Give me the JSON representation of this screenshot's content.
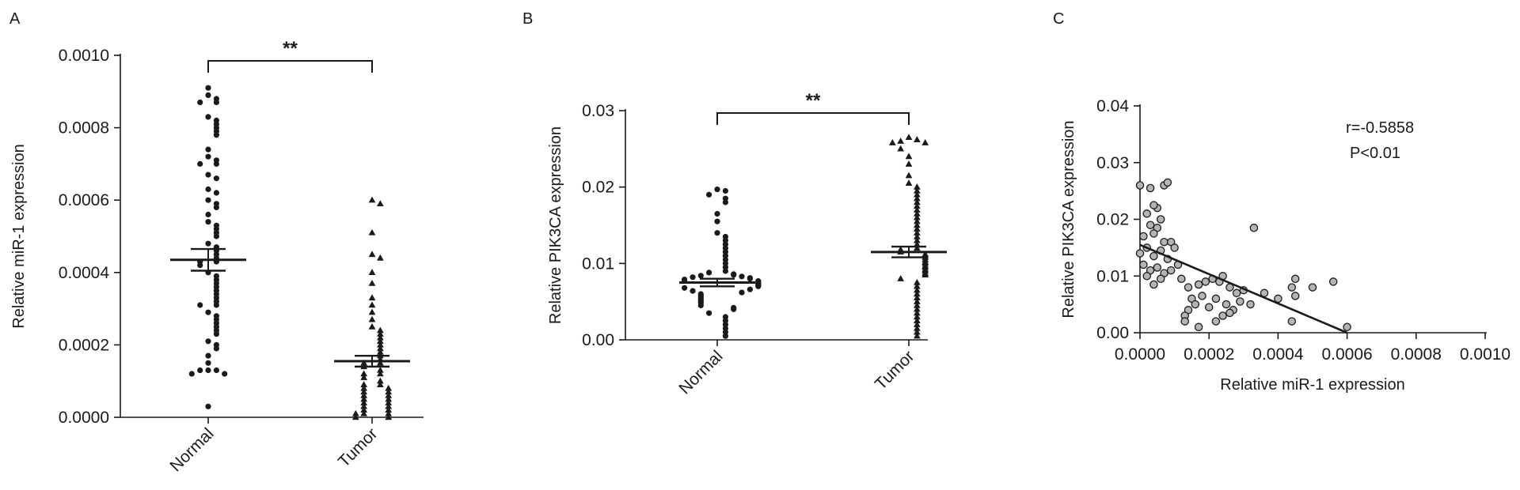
{
  "colors": {
    "ink": "#1a1a1a",
    "marker_fill_c": "#b4b4b4",
    "background": "#ffffff"
  },
  "chart_data": [
    {
      "panel": "A",
      "type": "scatter",
      "xlabel": "",
      "ylabel": "Relative miR-1 expression",
      "categories": [
        "Normal",
        "Tumor"
      ],
      "ylim": [
        0,
        0.001
      ],
      "yticks": [
        "0.0000",
        "0.0002",
        "0.0004",
        "0.0006",
        "0.0008",
        "0.0010"
      ],
      "ytick_values": [
        0,
        0.0002,
        0.0004,
        0.0006,
        0.0008,
        0.001
      ],
      "significance": "**",
      "groups": [
        {
          "category": "Normal",
          "marker": "circle",
          "mean": 0.000435,
          "sem_low": 0.000405,
          "sem_high": 0.000465,
          "values": [
            0.00091,
            0.00089,
            0.00088,
            0.00087,
            0.00087,
            0.00083,
            0.00082,
            0.00081,
            0.0008,
            0.00079,
            0.00078,
            0.00074,
            0.00072,
            0.00071,
            0.0007,
            0.0007,
            0.00067,
            0.00066,
            0.00063,
            0.00062,
            0.0006,
            0.00059,
            0.00058,
            0.00056,
            0.00054,
            0.00053,
            0.00052,
            0.00051,
            0.0005,
            0.00048,
            0.00047,
            0.00046,
            0.00045,
            0.00044,
            0.00043,
            0.00043,
            0.00042,
            0.0004,
            0.00039,
            0.00038,
            0.00037,
            0.00036,
            0.00035,
            0.00034,
            0.00033,
            0.00032,
            0.00031,
            0.00031,
            0.00029,
            0.00028,
            0.00027,
            0.00026,
            0.00025,
            0.00024,
            0.00023,
            0.00021,
            0.0002,
            0.00019,
            0.00017,
            0.00015,
            0.00013,
            0.00013,
            0.00013,
            0.00012,
            0.00012,
            3e-05
          ]
        },
        {
          "category": "Tumor",
          "marker": "triangle",
          "mean": 0.000155,
          "sem_low": 0.00014,
          "sem_high": 0.00017,
          "values": [
            0.0006,
            0.00059,
            0.00051,
            0.00045,
            0.00044,
            0.0004,
            0.00037,
            0.00033,
            0.00031,
            0.00029,
            0.00027,
            0.00025,
            0.00024,
            0.00023,
            0.00022,
            0.00021,
            0.0002,
            0.00019,
            0.00018,
            0.00017,
            0.00016,
            0.00015,
            0.00015,
            0.00014,
            0.00013,
            0.00012,
            0.00012,
            0.00011,
            0.0001,
            9e-05,
            9e-05,
            8e-05,
            8e-05,
            7e-05,
            7e-05,
            6e-05,
            6e-05,
            5e-05,
            5e-05,
            4e-05,
            4e-05,
            3e-05,
            3e-05,
            2e-05,
            2e-05,
            1e-05,
            1e-05,
            1e-05,
            0.0,
            0.0
          ]
        }
      ]
    },
    {
      "panel": "B",
      "type": "scatter",
      "xlabel": "",
      "ylabel": "Relative PIK3CA expression",
      "categories": [
        "Normal",
        "Tumor"
      ],
      "ylim": [
        0,
        0.03
      ],
      "yticks": [
        "0.00",
        "0.01",
        "0.02",
        "0.03"
      ],
      "ytick_values": [
        0,
        0.01,
        0.02,
        0.03
      ],
      "significance": "**",
      "groups": [
        {
          "category": "Normal",
          "marker": "circle",
          "mean": 0.0075,
          "sem_low": 0.007,
          "sem_high": 0.008,
          "values": [
            0.0197,
            0.0195,
            0.019,
            0.0185,
            0.018,
            0.0165,
            0.0155,
            0.014,
            0.0135,
            0.013,
            0.0125,
            0.012,
            0.0115,
            0.011,
            0.0105,
            0.01,
            0.0095,
            0.009,
            0.0088,
            0.0086,
            0.0085,
            0.0084,
            0.0083,
            0.0082,
            0.0081,
            0.008,
            0.0079,
            0.0078,
            0.0077,
            0.0076,
            0.0075,
            0.0074,
            0.0073,
            0.0072,
            0.0071,
            0.007,
            0.0068,
            0.0066,
            0.0064,
            0.0062,
            0.006,
            0.0058,
            0.0056,
            0.0054,
            0.0052,
            0.005,
            0.0048,
            0.0045,
            0.0042,
            0.004,
            0.0035,
            0.003,
            0.0025,
            0.002,
            0.0015,
            0.001,
            0.0005
          ]
        },
        {
          "category": "Tumor",
          "marker": "triangle",
          "mean": 0.0115,
          "sem_low": 0.0108,
          "sem_high": 0.0122,
          "values": [
            0.0265,
            0.0262,
            0.026,
            0.0258,
            0.0258,
            0.025,
            0.024,
            0.023,
            0.0215,
            0.0205,
            0.02,
            0.0195,
            0.019,
            0.0185,
            0.018,
            0.0175,
            0.017,
            0.0165,
            0.016,
            0.0155,
            0.015,
            0.0145,
            0.014,
            0.0135,
            0.013,
            0.0125,
            0.012,
            0.0118,
            0.0115,
            0.0112,
            0.011,
            0.0108,
            0.0105,
            0.0102,
            0.01,
            0.0097,
            0.0095,
            0.0092,
            0.009,
            0.0087,
            0.0085,
            0.008,
            0.0075,
            0.007,
            0.0065,
            0.006,
            0.0055,
            0.005,
            0.0045,
            0.004,
            0.0035,
            0.003,
            0.0025,
            0.002,
            0.0015,
            0.001,
            0.0005
          ]
        }
      ]
    },
    {
      "panel": "C",
      "type": "scatter",
      "xlabel": "Relative miR-1 expression",
      "ylabel": "Relative PIK3CA expression",
      "xlim": [
        0,
        0.001
      ],
      "ylim": [
        0,
        0.04
      ],
      "xticks": [
        "0.0000",
        "0.0002",
        "0.0004",
        "0.0006",
        "0.0008",
        "0.0010"
      ],
      "xtick_values": [
        0,
        0.0002,
        0.0004,
        0.0006,
        0.0008,
        0.001
      ],
      "yticks": [
        "0.00",
        "0.01",
        "0.02",
        "0.03",
        "0.04"
      ],
      "ytick_values": [
        0,
        0.01,
        0.02,
        0.03,
        0.04
      ],
      "annotations": [
        "r=-0.5858",
        "P<0.01"
      ],
      "fit_line": [
        [
          0.0,
          0.0155
        ],
        [
          0.0006,
          0.0
        ]
      ],
      "points": [
        [
          0.0,
          0.026
        ],
        [
          3e-05,
          0.0255
        ],
        [
          5e-05,
          0.022
        ],
        [
          4e-05,
          0.0225
        ],
        [
          7e-05,
          0.026
        ],
        [
          8e-05,
          0.0265
        ],
        [
          2e-05,
          0.021
        ],
        [
          6e-05,
          0.02
        ],
        [
          3e-05,
          0.019
        ],
        [
          5e-05,
          0.0185
        ],
        [
          1e-05,
          0.017
        ],
        [
          4e-05,
          0.0175
        ],
        [
          7e-05,
          0.016
        ],
        [
          9e-05,
          0.016
        ],
        [
          2e-05,
          0.015
        ],
        [
          6e-05,
          0.0145
        ],
        [
          0.0001,
          0.015
        ],
        [
          0.0,
          0.014
        ],
        [
          4e-05,
          0.0135
        ],
        [
          8e-05,
          0.013
        ],
        [
          0.00011,
          0.012
        ],
        [
          1e-05,
          0.012
        ],
        [
          5e-05,
          0.0115
        ],
        [
          3e-05,
          0.011
        ],
        [
          7e-05,
          0.0105
        ],
        [
          9e-05,
          0.011
        ],
        [
          2e-05,
          0.01
        ],
        [
          6e-05,
          0.0095
        ],
        [
          0.00012,
          0.0095
        ],
        [
          4e-05,
          0.0085
        ],
        [
          0.00014,
          0.008
        ],
        [
          0.00017,
          0.0085
        ],
        [
          0.00019,
          0.009
        ],
        [
          0.00021,
          0.0095
        ],
        [
          0.00023,
          0.009
        ],
        [
          0.00024,
          0.01
        ],
        [
          0.00026,
          0.008
        ],
        [
          0.00028,
          0.007
        ],
        [
          0.0003,
          0.0075
        ],
        [
          0.00015,
          0.006
        ],
        [
          0.00018,
          0.0065
        ],
        [
          0.00022,
          0.006
        ],
        [
          0.00016,
          0.005
        ],
        [
          0.0002,
          0.0045
        ],
        [
          0.00025,
          0.005
        ],
        [
          0.00027,
          0.004
        ],
        [
          0.00029,
          0.0055
        ],
        [
          0.00032,
          0.005
        ],
        [
          0.00014,
          0.004
        ],
        [
          0.00013,
          0.003
        ],
        [
          0.00024,
          0.003
        ],
        [
          0.00026,
          0.0035
        ],
        [
          0.00022,
          0.002
        ],
        [
          0.00017,
          0.001
        ],
        [
          0.00013,
          0.002
        ],
        [
          0.00033,
          0.0185
        ],
        [
          0.00036,
          0.007
        ],
        [
          0.0004,
          0.006
        ],
        [
          0.00044,
          0.008
        ],
        [
          0.00045,
          0.0095
        ],
        [
          0.00045,
          0.0065
        ],
        [
          0.0005,
          0.008
        ],
        [
          0.00056,
          0.009
        ],
        [
          0.00044,
          0.002
        ],
        [
          0.0006,
          0.001
        ]
      ]
    }
  ]
}
